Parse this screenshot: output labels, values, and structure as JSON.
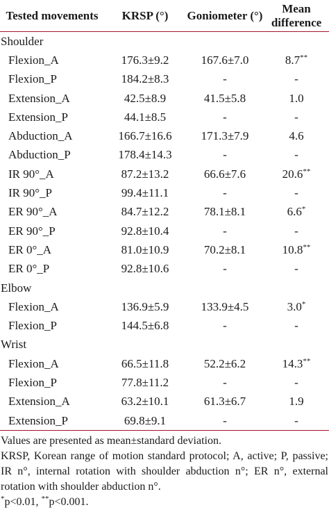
{
  "table": {
    "headers": [
      "Tested movements",
      "KRSP (°)",
      "Goniometer (°)",
      "Mean difference"
    ],
    "sections": [
      {
        "title": "Shoulder",
        "rows": [
          [
            "Flexion_A",
            "176.3±9.2",
            "167.6±7.0",
            "8.7**"
          ],
          [
            "Flexion_P",
            "184.2±8.3",
            "-",
            "-"
          ],
          [
            "Extension_A",
            "42.5±8.9",
            "41.5±5.8",
            "1.0"
          ],
          [
            "Extension_P",
            "44.1±8.5",
            "-",
            "-"
          ],
          [
            "Abduction_A",
            "166.7±16.6",
            "171.3±7.9",
            "4.6"
          ],
          [
            "Abduction_P",
            "178.4±14.3",
            "-",
            "-"
          ],
          [
            "IR 90°_A",
            "87.2±13.2",
            "66.6±7.6",
            "20.6**"
          ],
          [
            "IR 90°_P",
            "99.4±11.1",
            "-",
            "-"
          ],
          [
            "ER 90°_A",
            "84.7±12.2",
            "78.1±8.1",
            "6.6*"
          ],
          [
            "ER 90°_P",
            "92.8±10.4",
            "-",
            "-"
          ],
          [
            "ER 0°_A",
            "81.0±10.9",
            "70.2±8.1",
            "10.8**"
          ],
          [
            "ER 0°_P",
            "92.8±10.6",
            "-",
            "-"
          ]
        ]
      },
      {
        "title": "Elbow",
        "rows": [
          [
            "Flexion_A",
            "136.9±5.9",
            "133.9±4.5",
            "3.0*"
          ],
          [
            "Flexion_P",
            "144.5±6.8",
            "-",
            "-"
          ]
        ]
      },
      {
        "title": "Wrist",
        "rows": [
          [
            "Flexion_A",
            "66.5±11.8",
            "52.2±6.2",
            "14.3**"
          ],
          [
            "Flexion_P",
            "77.8±11.2",
            "-",
            "-"
          ],
          [
            "Extension_A",
            "63.2±10.1",
            "61.3±6.7",
            "1.9"
          ],
          [
            "Extension_P",
            "69.8±9.1",
            "-",
            "-"
          ]
        ]
      }
    ]
  },
  "notes": [
    "Values are presented as mean±standard deviation.",
    "KRSP, Korean range of motion standard protocol; A, active; P, passive; IR n°, internal rotation with shoulder abduction n°; ER n°, external rotation with shoulder abduction n°.",
    "*p<0.01, **p<0.001."
  ]
}
